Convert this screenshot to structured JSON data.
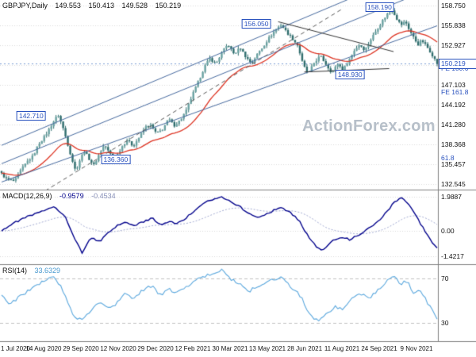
{
  "header": {
    "symbol": "GBPJPY,Daily",
    "open": "149.553",
    "high": "150.413",
    "low": "149.528",
    "close": "150.219"
  },
  "watermark": "ActionForex.com",
  "colors": {
    "bull": "#6aa2a2",
    "bear": "#2f6d6d",
    "wick": "#2f6d6d",
    "ma": "#dd3322",
    "macd": "#00008b",
    "macd_signal": "#a0a8d0",
    "rsi": "#5aa7dd",
    "grid": "#d9d9d9",
    "level": "#c0c0c0",
    "separator": "#7f7f7f",
    "label_blue": "#2a52be",
    "watermark": "#b6bfc9",
    "channel": "#46699e",
    "trend_dashed": "#555555",
    "trend_dark": "#333333"
  },
  "x_axis": {
    "labels": [
      "1 Jul 2020",
      "14 Aug 2020",
      "29 Sep 2020",
      "12 Nov 2020",
      "29 Dec 2020",
      "12 Feb 2021",
      "30 Mar 2021",
      "13 May 2021",
      "28 Jun 2021",
      "11 Aug 2021",
      "24 Sep 2021",
      "9 Nov 2021"
    ]
  },
  "chart_data": [
    {
      "type": "candlestick",
      "panel": "price",
      "symbol": "GBPJPY",
      "timeframe": "Daily",
      "ohlc_last": {
        "open": 149.553,
        "high": 150.413,
        "low": 149.528,
        "close": 150.219
      },
      "ylim": [
        131.8,
        159.6
      ],
      "axis_ticks": [
        "158.750",
        "155.838",
        "152.927",
        "147.103",
        "144.192",
        "141.280",
        "138.368",
        "135.457",
        "132.545"
      ],
      "grid_extra": [
        "150.015"
      ],
      "current_price": "150.219",
      "anchors": [
        [
          0.0,
          134.0
        ],
        [
          0.012,
          133.2
        ],
        [
          0.03,
          132.9
        ],
        [
          0.045,
          134.6
        ],
        [
          0.06,
          135.9
        ],
        [
          0.072,
          136.6
        ],
        [
          0.085,
          138.4
        ],
        [
          0.1,
          139.6
        ],
        [
          0.112,
          140.9
        ],
        [
          0.122,
          142.0
        ],
        [
          0.13,
          142.7
        ],
        [
          0.14,
          141.0
        ],
        [
          0.15,
          138.8
        ],
        [
          0.16,
          136.5
        ],
        [
          0.17,
          134.4
        ],
        [
          0.18,
          136.1
        ],
        [
          0.19,
          137.4
        ],
        [
          0.2,
          136.3
        ],
        [
          0.212,
          135.3
        ],
        [
          0.224,
          136.9
        ],
        [
          0.236,
          138.3
        ],
        [
          0.248,
          137.0
        ],
        [
          0.262,
          136.4
        ],
        [
          0.275,
          137.9
        ],
        [
          0.288,
          139.0
        ],
        [
          0.302,
          138.1
        ],
        [
          0.316,
          139.4
        ],
        [
          0.33,
          140.9
        ],
        [
          0.342,
          141.2
        ],
        [
          0.356,
          139.9
        ],
        [
          0.37,
          140.6
        ],
        [
          0.384,
          142.1
        ],
        [
          0.396,
          141.1
        ],
        [
          0.41,
          141.9
        ],
        [
          0.424,
          143.3
        ],
        [
          0.438,
          145.6
        ],
        [
          0.452,
          147.6
        ],
        [
          0.466,
          149.8
        ],
        [
          0.478,
          151.0
        ],
        [
          0.492,
          150.2
        ],
        [
          0.506,
          151.9
        ],
        [
          0.52,
          153.1
        ],
        [
          0.534,
          151.6
        ],
        [
          0.548,
          152.6
        ],
        [
          0.562,
          151.1
        ],
        [
          0.574,
          150.3
        ],
        [
          0.588,
          151.7
        ],
        [
          0.602,
          152.9
        ],
        [
          0.616,
          154.2
        ],
        [
          0.63,
          155.3
        ],
        [
          0.642,
          156.0
        ],
        [
          0.654,
          154.9
        ],
        [
          0.668,
          153.9
        ],
        [
          0.68,
          152.9
        ],
        [
          0.692,
          150.1
        ],
        [
          0.704,
          148.7
        ],
        [
          0.718,
          150.4
        ],
        [
          0.732,
          151.4
        ],
        [
          0.746,
          150.0
        ],
        [
          0.758,
          148.9
        ],
        [
          0.772,
          150.2
        ],
        [
          0.784,
          149.3
        ],
        [
          0.797,
          150.7
        ],
        [
          0.81,
          152.2
        ],
        [
          0.822,
          153.1
        ],
        [
          0.834,
          152.2
        ],
        [
          0.846,
          153.6
        ],
        [
          0.858,
          154.9
        ],
        [
          0.872,
          156.3
        ],
        [
          0.885,
          157.5
        ],
        [
          0.897,
          158.2
        ],
        [
          0.907,
          156.9
        ],
        [
          0.917,
          155.9
        ],
        [
          0.927,
          156.5
        ],
        [
          0.937,
          155.1
        ],
        [
          0.947,
          154.0
        ],
        [
          0.956,
          153.0
        ],
        [
          0.964,
          153.7
        ],
        [
          0.972,
          153.1
        ],
        [
          0.981,
          152.3
        ],
        [
          0.99,
          151.4
        ],
        [
          1.0,
          150.2
        ]
      ],
      "swing_labels": [
        {
          "text": "142.710",
          "f": 0.068,
          "price": 142.6
        },
        {
          "text": "136.360",
          "f": 0.262,
          "price": 136.1
        },
        {
          "text": "156.050",
          "f": 0.585,
          "price": 156.1
        },
        {
          "text": "148.930",
          "f": 0.8,
          "price": 148.6
        },
        {
          "text": "158.190",
          "f": 0.868,
          "price": 158.5
        }
      ],
      "fib_labels": [
        {
          "text": "FE 100.0",
          "price": 149.5
        },
        {
          "text": "FE 161.8",
          "price": 146.0
        },
        {
          "text": "61.8",
          "price": 136.4
        }
      ],
      "overlay_lines": [
        {
          "f1": 0.0,
          "p1": 132.8,
          "f2": 1.0,
          "p2": 155.8,
          "color": "#46699e",
          "width": 1,
          "dash": []
        },
        {
          "f1": 0.0,
          "p1": 135.5,
          "f2": 0.93,
          "p2": 159.8,
          "color": "#46699e",
          "width": 1,
          "dash": []
        },
        {
          "f1": 0.0,
          "p1": 138.2,
          "f2": 0.8,
          "p2": 159.8,
          "color": "#46699e",
          "width": 1,
          "dash": []
        },
        {
          "f1": 0.1,
          "p1": 131.5,
          "f2": 0.78,
          "p2": 158.2,
          "color": "#555555",
          "width": 1,
          "dash": [
            5,
            4
          ]
        },
        {
          "f1": 0.635,
          "p1": 156.4,
          "f2": 0.9,
          "p2": 152.0,
          "color": "#333333",
          "width": 1,
          "dash": []
        },
        {
          "f1": 0.695,
          "p1": 149.0,
          "f2": 0.89,
          "p2": 149.5,
          "color": "#333333",
          "width": 1,
          "dash": []
        }
      ]
    },
    {
      "type": "line",
      "panel": "macd",
      "label": "MACD(12,26,9)",
      "main_value": "-0.9579",
      "signal_value": "-0.4534",
      "ylim": [
        -1.85,
        2.35
      ],
      "axis_ticks": [
        "1.9887",
        "0.00",
        "-1.4217"
      ],
      "anchors": [
        [
          0.0,
          0.05
        ],
        [
          0.03,
          0.5
        ],
        [
          0.06,
          0.85
        ],
        [
          0.09,
          1.1
        ],
        [
          0.12,
          1.45
        ],
        [
          0.145,
          0.9
        ],
        [
          0.165,
          -0.3
        ],
        [
          0.185,
          -1.25
        ],
        [
          0.205,
          -0.35
        ],
        [
          0.225,
          -0.6
        ],
        [
          0.245,
          -0.1
        ],
        [
          0.265,
          0.3
        ],
        [
          0.285,
          0.55
        ],
        [
          0.305,
          0.3
        ],
        [
          0.325,
          0.55
        ],
        [
          0.345,
          0.75
        ],
        [
          0.365,
          0.4
        ],
        [
          0.385,
          0.55
        ],
        [
          0.405,
          0.45
        ],
        [
          0.425,
          0.8
        ],
        [
          0.445,
          1.2
        ],
        [
          0.465,
          1.6
        ],
        [
          0.485,
          1.85
        ],
        [
          0.505,
          1.99
        ],
        [
          0.525,
          1.75
        ],
        [
          0.545,
          1.45
        ],
        [
          0.565,
          1.05
        ],
        [
          0.585,
          0.8
        ],
        [
          0.605,
          0.95
        ],
        [
          0.625,
          1.2
        ],
        [
          0.645,
          1.35
        ],
        [
          0.665,
          1.05
        ],
        [
          0.685,
          0.55
        ],
        [
          0.705,
          -0.35
        ],
        [
          0.725,
          -0.95
        ],
        [
          0.74,
          -1.1
        ],
        [
          0.76,
          -0.55
        ],
        [
          0.78,
          -0.3
        ],
        [
          0.8,
          -0.5
        ],
        [
          0.82,
          -0.2
        ],
        [
          0.84,
          0.1
        ],
        [
          0.86,
          0.45
        ],
        [
          0.88,
          1.0
        ],
        [
          0.9,
          1.6
        ],
        [
          0.915,
          1.95
        ],
        [
          0.93,
          1.7
        ],
        [
          0.945,
          1.2
        ],
        [
          0.96,
          0.5
        ],
        [
          0.975,
          -0.1
        ],
        [
          0.99,
          -0.7
        ],
        [
          1.0,
          -0.96
        ]
      ]
    },
    {
      "type": "line",
      "panel": "rsi",
      "label": "RSI(14)",
      "value": "33.6329",
      "ylim": [
        14,
        82
      ],
      "levels": [
        "70",
        "30"
      ],
      "anchors": [
        [
          0.0,
          54
        ],
        [
          0.02,
          47
        ],
        [
          0.05,
          56
        ],
        [
          0.08,
          63
        ],
        [
          0.1,
          68
        ],
        [
          0.12,
          73
        ],
        [
          0.14,
          60
        ],
        [
          0.165,
          36
        ],
        [
          0.185,
          33
        ],
        [
          0.205,
          42
        ],
        [
          0.225,
          50
        ],
        [
          0.245,
          44
        ],
        [
          0.265,
          48
        ],
        [
          0.285,
          57
        ],
        [
          0.305,
          52
        ],
        [
          0.325,
          60
        ],
        [
          0.345,
          63
        ],
        [
          0.365,
          55
        ],
        [
          0.385,
          60
        ],
        [
          0.405,
          57
        ],
        [
          0.425,
          63
        ],
        [
          0.445,
          68
        ],
        [
          0.465,
          72
        ],
        [
          0.485,
          74
        ],
        [
          0.505,
          77
        ],
        [
          0.525,
          70
        ],
        [
          0.545,
          66
        ],
        [
          0.565,
          58
        ],
        [
          0.585,
          62
        ],
        [
          0.605,
          66
        ],
        [
          0.625,
          69
        ],
        [
          0.645,
          72
        ],
        [
          0.665,
          62
        ],
        [
          0.685,
          55
        ],
        [
          0.705,
          40
        ],
        [
          0.725,
          32
        ],
        [
          0.745,
          38
        ],
        [
          0.765,
          45
        ],
        [
          0.785,
          42
        ],
        [
          0.805,
          52
        ],
        [
          0.825,
          56
        ],
        [
          0.845,
          53
        ],
        [
          0.865,
          60
        ],
        [
          0.885,
          67
        ],
        [
          0.9,
          73
        ],
        [
          0.915,
          64
        ],
        [
          0.93,
          68
        ],
        [
          0.945,
          58
        ],
        [
          0.96,
          61
        ],
        [
          0.975,
          50
        ],
        [
          0.99,
          40
        ],
        [
          1.0,
          33.6
        ]
      ]
    }
  ]
}
